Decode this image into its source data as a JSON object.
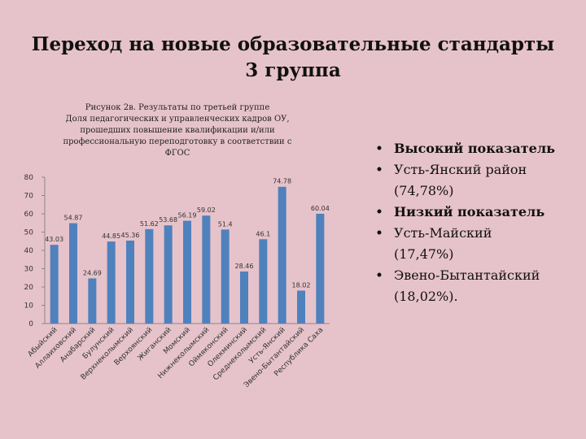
{
  "slide": {
    "title": [
      "Переход на новые образовательные стандарты",
      "3 группа"
    ],
    "bullets": [
      {
        "lines": [
          "Высокий показатель"
        ],
        "bold": true
      },
      {
        "lines": [
          "Усть-Янский район",
          "(74,78%)"
        ],
        "bold": false
      },
      {
        "lines": [
          "Низкий показатель"
        ],
        "bold": true
      },
      {
        "lines": [
          "Усть-Майский",
          "(17,47%)"
        ],
        "bold": false
      },
      {
        "lines": [
          "Эвено-Бытантайский",
          "(18,02%)."
        ],
        "bold": false
      }
    ]
  },
  "chart_data": {
    "type": "bar",
    "title": [
      "Рисунок 2в. Результаты по третьей группе",
      "Доля педагогических и управленческих кадров ОУ,",
      "прошедших повышение квалификации и/или",
      "профессиональную переподготовку в соответствии с",
      "ФГОС"
    ],
    "categories": [
      "Абыйский",
      "Аллаиховский",
      "Анабарский",
      "Булунский",
      "Верхнеколымский",
      "Верхоянский",
      "Жиганский",
      "Момский",
      "Нижнеколымский",
      "Оймяконский",
      "Олекминский",
      "Среднеколымский",
      "Усть-Янский",
      "Эвено-Бытантайский",
      "Республика Саха"
    ],
    "values": [
      43.03,
      54.87,
      24.69,
      44.85,
      45.36,
      51.62,
      53.68,
      56.19,
      59.02,
      51.4,
      28.46,
      46.1,
      74.78,
      18.02,
      60.04
    ],
    "color": "#4f81bd",
    "ylim": [
      0,
      80
    ],
    "yticks": [
      0,
      10,
      20,
      30,
      40,
      50,
      60,
      70,
      80
    ],
    "grid": false
  }
}
